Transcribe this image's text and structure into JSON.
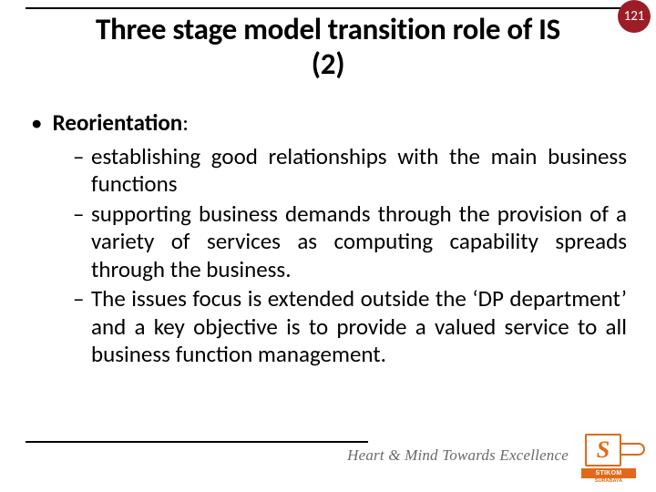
{
  "page_number": "121",
  "badge_bg": "#9b1e26",
  "title_line1": "Three stage model transition role of IS",
  "title_line2": "(2)",
  "heading": "Reorientation",
  "heading_suffix": ":",
  "bullets": [
    "establishing good relationships with the main business functions",
    "supporting business demands through the provision of a variety of services as computing capability spreads through the business.",
    "The issues focus is extended outside the ‘DP department’ and a key objective is to provide a valued service to all business function management."
  ],
  "tagline": "Heart & Mind Towards Excellence",
  "logo": {
    "accent": "#e06a1a",
    "letter": "S",
    "band_text": "STIKOM",
    "sub_text": "SURABAYA"
  }
}
